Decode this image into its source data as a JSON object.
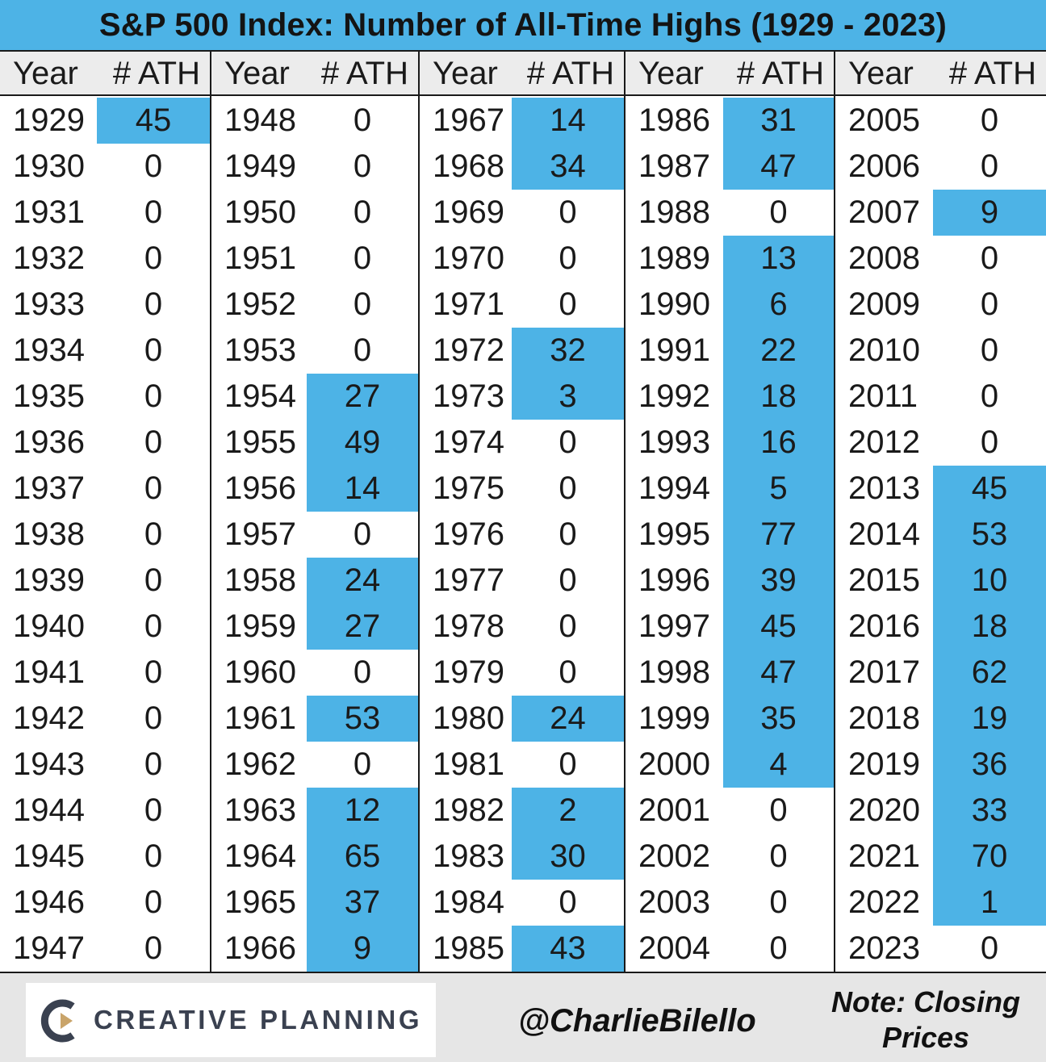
{
  "title": "S&P 500 Index: Number of All-Time Highs (1929 - 2023)",
  "headers": {
    "year": "Year",
    "ath": "# ATH"
  },
  "colors": {
    "highlight": "#4db3e6",
    "header_band": "#4db3e6",
    "subheader": "#ececec",
    "footer": "#e6e6e6"
  },
  "footer": {
    "logo_text": "CREATIVE PLANNING",
    "logo_icon": "creative-planning-c-icon",
    "handle": "@CharlieBilello",
    "note": "Note: Closing Prices"
  },
  "chart_data": {
    "type": "table",
    "title": "S&P 500 Index: Number of All-Time Highs (1929 - 2023)",
    "columns": [
      "Year",
      "# ATH"
    ],
    "highlight_rule": "years with one or more all-time highs are shaded blue",
    "groups": [
      [
        [
          "1929",
          45
        ],
        [
          "1930",
          0
        ],
        [
          "1931",
          0
        ],
        [
          "1932",
          0
        ],
        [
          "1933",
          0
        ],
        [
          "1934",
          0
        ],
        [
          "1935",
          0
        ],
        [
          "1936",
          0
        ],
        [
          "1937",
          0
        ],
        [
          "1938",
          0
        ],
        [
          "1939",
          0
        ],
        [
          "1940",
          0
        ],
        [
          "1941",
          0
        ],
        [
          "1942",
          0
        ],
        [
          "1943",
          0
        ],
        [
          "1944",
          0
        ],
        [
          "1945",
          0
        ],
        [
          "1946",
          0
        ],
        [
          "1947",
          0
        ]
      ],
      [
        [
          "1948",
          0
        ],
        [
          "1949",
          0
        ],
        [
          "1950",
          0
        ],
        [
          "1951",
          0
        ],
        [
          "1952",
          0
        ],
        [
          "1953",
          0
        ],
        [
          "1954",
          27
        ],
        [
          "1955",
          49
        ],
        [
          "1956",
          14
        ],
        [
          "1957",
          0
        ],
        [
          "1958",
          24
        ],
        [
          "1959",
          27
        ],
        [
          "1960",
          0
        ],
        [
          "1961",
          53
        ],
        [
          "1962",
          0
        ],
        [
          "1963",
          12
        ],
        [
          "1964",
          65
        ],
        [
          "1965",
          37
        ],
        [
          "1966",
          9
        ]
      ],
      [
        [
          "1967",
          14
        ],
        [
          "1968",
          34
        ],
        [
          "1969",
          0
        ],
        [
          "1970",
          0
        ],
        [
          "1971",
          0
        ],
        [
          "1972",
          32
        ],
        [
          "1973",
          3
        ],
        [
          "1974",
          0
        ],
        [
          "1975",
          0
        ],
        [
          "1976",
          0
        ],
        [
          "1977",
          0
        ],
        [
          "1978",
          0
        ],
        [
          "1979",
          0
        ],
        [
          "1980",
          24
        ],
        [
          "1981",
          0
        ],
        [
          "1982",
          2
        ],
        [
          "1983",
          30
        ],
        [
          "1984",
          0
        ],
        [
          "1985",
          43
        ]
      ],
      [
        [
          "1986",
          31
        ],
        [
          "1987",
          47
        ],
        [
          "1988",
          0
        ],
        [
          "1989",
          13
        ],
        [
          "1990",
          6
        ],
        [
          "1991",
          22
        ],
        [
          "1992",
          18
        ],
        [
          "1993",
          16
        ],
        [
          "1994",
          5
        ],
        [
          "1995",
          77
        ],
        [
          "1996",
          39
        ],
        [
          "1997",
          45
        ],
        [
          "1998",
          47
        ],
        [
          "1999",
          35
        ],
        [
          "2000",
          4
        ],
        [
          "2001",
          0
        ],
        [
          "2002",
          0
        ],
        [
          "2003",
          0
        ],
        [
          "2004",
          0
        ]
      ],
      [
        [
          "2005",
          0
        ],
        [
          "2006",
          0
        ],
        [
          "2007",
          9
        ],
        [
          "2008",
          0
        ],
        [
          "2009",
          0
        ],
        [
          "2010",
          0
        ],
        [
          "2011",
          0
        ],
        [
          "2012",
          0
        ],
        [
          "2013",
          45
        ],
        [
          "2014",
          53
        ],
        [
          "2015",
          10
        ],
        [
          "2016",
          18
        ],
        [
          "2017",
          62
        ],
        [
          "2018",
          19
        ],
        [
          "2019",
          36
        ],
        [
          "2020",
          33
        ],
        [
          "2021",
          70
        ],
        [
          "2022",
          1
        ],
        [
          "2023",
          0
        ]
      ]
    ]
  }
}
